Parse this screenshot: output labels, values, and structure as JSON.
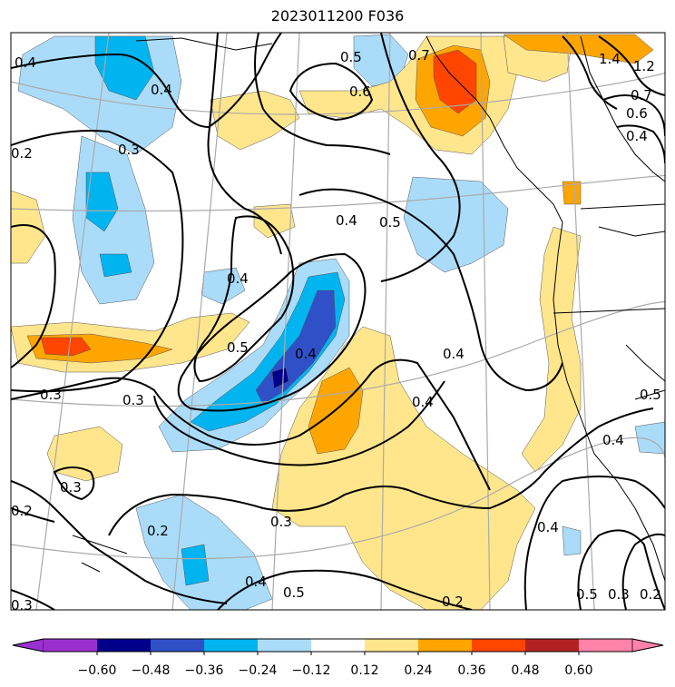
{
  "title": "2023011200 F036",
  "contour_labels": [
    "0.4",
    "0.4",
    "0.5",
    "0.6",
    "0.7",
    "0.2",
    "0.3",
    "0.4",
    "0.4",
    "0.5",
    "0.4",
    "0.4",
    "0.5",
    "0.3",
    "0.3",
    "0.4",
    "0.3",
    "0.3",
    "0.2",
    "0.2",
    "0.3",
    "0.4",
    "0.5",
    "0.2",
    "0.4",
    "0.5",
    "0.3",
    "0.2",
    "0.4",
    "0.5",
    "1.2",
    "1.4",
    "0.6",
    "0.7",
    "0.4"
  ],
  "colorbar": {
    "ticks": [
      "−0.60",
      "−0.48",
      "−0.36",
      "−0.24",
      "−0.12",
      "0.12",
      "0.24",
      "0.36",
      "0.48",
      "0.60"
    ],
    "colors": [
      "#9b30d0",
      "#00008b",
      "#3050c8",
      "#00b4f0",
      "#aadcfa",
      "#ffffff",
      "#ffe68c",
      "#ffa500",
      "#ff4500",
      "#b22222",
      "#ff82aa"
    ]
  },
  "fill_colors": {
    "light_blue": "#aadcfa",
    "blue": "#00b4f0",
    "mid_blue": "#3050c8",
    "navy": "#00008b",
    "yellow": "#ffe68c",
    "orange": "#ffa500",
    "red_orange": "#ff4500"
  }
}
